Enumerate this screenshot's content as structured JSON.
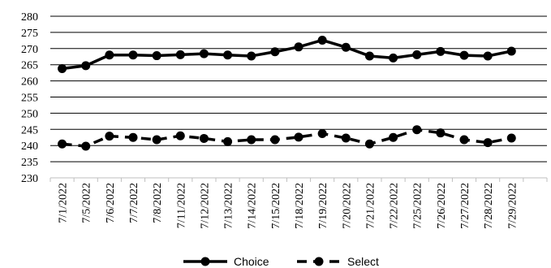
{
  "chart_data": {
    "type": "line",
    "title": "",
    "xlabel": "",
    "ylabel": "",
    "ylim": [
      230,
      280
    ],
    "y_ticks": [
      "230",
      "235",
      "240",
      "245",
      "250",
      "255",
      "260",
      "265",
      "270",
      "275",
      "280"
    ],
    "grid": "horizontal",
    "legend_position": "bottom",
    "categories": [
      "7/1/2022",
      "7/5/2022",
      "7/6/2022",
      "7/7/2022",
      "7/8/2022",
      "7/11/2022",
      "7/12/2022",
      "7/13/2022",
      "7/14/2022",
      "7/15/2022",
      "7/18/2022",
      "7/19/2022",
      "7/20/2022",
      "7/21/2022",
      "7/22/2022",
      "7/25/2022",
      "7/26/2022",
      "7/27/2022",
      "7/28/2022",
      "7/29/2022"
    ],
    "series": [
      {
        "name": "Choice",
        "style": "solid",
        "color": "#000000",
        "values": [
          263.8,
          264.7,
          268.0,
          268.0,
          267.8,
          268.1,
          268.4,
          268.0,
          267.7,
          269.0,
          270.5,
          272.6,
          270.4,
          267.7,
          267.1,
          268.1,
          269.1,
          267.9,
          267.7,
          269.2
        ]
      },
      {
        "name": "Select",
        "style": "dashed",
        "color": "#000000",
        "values": [
          240.5,
          239.8,
          242.9,
          242.5,
          241.8,
          243.0,
          242.2,
          241.2,
          241.8,
          241.8,
          242.6,
          243.7,
          242.3,
          240.5,
          242.5,
          244.9,
          243.9,
          241.8,
          240.9,
          242.3
        ]
      }
    ]
  }
}
